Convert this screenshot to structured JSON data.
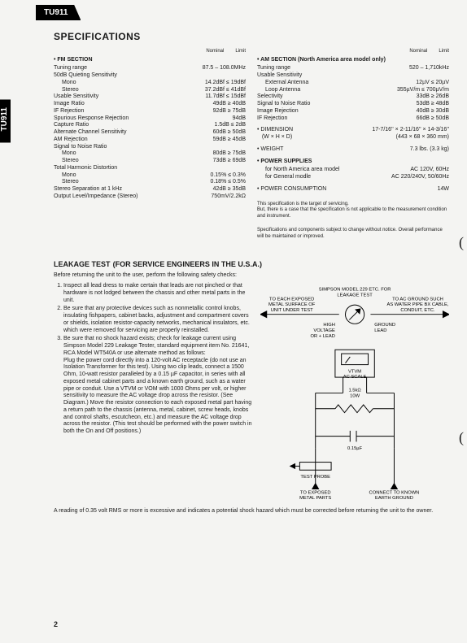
{
  "model": "TU911",
  "page_number": "2",
  "headings": {
    "specs": "SPECIFICATIONS",
    "leak": "LEAKAGE TEST",
    "leak_sub": "(FOR SERVICE ENGINEERS IN THE U.S.A.)"
  },
  "spec_header": {
    "nominal": "Nominal",
    "limit": "Limit"
  },
  "fm": {
    "title": "• FM SECTION",
    "rows": [
      {
        "l": "Tuning range",
        "v": "87.5 – 108.0MHz"
      },
      {
        "l": "50dB Quieting Sensitivity",
        "v": ""
      },
      {
        "l": "Mono",
        "v": "14.2dBf ≤ 19dBf",
        "i": 1
      },
      {
        "l": "Stereo",
        "v": "37.2dBf ≤ 41dBf",
        "i": 1
      },
      {
        "l": "Usable Sensitivity",
        "v": "11.7dBf ≤ 15dBf"
      },
      {
        "l": "Image Ratio",
        "v": "49dB ≥ 40dB"
      },
      {
        "l": "IF Rejection",
        "v": "92dB ≥ 75dB"
      },
      {
        "l": "Spurious Response Rejection",
        "v": "94dB"
      },
      {
        "l": "Capture Ratio",
        "v": "1.5dB ≤ 2dB"
      },
      {
        "l": "Alternate Channel Sensitivity",
        "v": "60dB ≥ 50dB"
      },
      {
        "l": "AM Rejection",
        "v": "59dB ≥ 45dB"
      },
      {
        "l": "Signal to Noise Ratio",
        "v": ""
      },
      {
        "l": "Mono",
        "v": "80dB ≥ 75dB",
        "i": 1
      },
      {
        "l": "Stereo",
        "v": "73dB ≥ 69dB",
        "i": 1
      },
      {
        "l": "Total Harmonic Distortion",
        "v": ""
      },
      {
        "l": "Mono",
        "v": "0.15% ≤ 0.3%",
        "i": 1
      },
      {
        "l": "Stereo",
        "v": "0.18% ≤ 0.5%",
        "i": 1
      },
      {
        "l": "Stereo Separation at 1 kHz",
        "v": "42dB ≥ 35dB"
      },
      {
        "l": "Output Level/Impedance (Stereo)",
        "v": "750mV/2.2kΩ"
      }
    ]
  },
  "am": {
    "title": "• AM SECTION (North America area model only)",
    "rows": [
      {
        "l": "Tuning range",
        "v": "520 – 1,710kHz"
      },
      {
        "l": "Usable Sensitivity",
        "v": ""
      },
      {
        "l": "External Antenna",
        "v": "12µV ≤ 20µV",
        "i": 1
      },
      {
        "l": "Loop Antenna",
        "v": "355µV/m ≤ 700µV/m",
        "i": 1
      },
      {
        "l": "Selectivity",
        "v": "33dB ≥ 26dB"
      },
      {
        "l": "Signal to Noise Ratio",
        "v": "53dB ≥ 48dB"
      },
      {
        "l": "Image Rejection",
        "v": "40dB ≥ 30dB"
      },
      {
        "l": "IF Rejection",
        "v": "66dB ≥ 50dB"
      }
    ],
    "dim_l": "• DIMENSION\n   (W × H × D)",
    "dim_v": "17-7/16'' × 2-11/16'' × 14-3/16''\n(443 × 68 × 360 mm)",
    "wt_l": "• WEIGHT",
    "wt_v": "7.3 lbs. (3.3 kg)",
    "ps_title": "• POWER SUPPLIES",
    "ps1_l": "for North America area model",
    "ps1_v": "AC 120V, 60Hz",
    "ps2_l": "for General modle",
    "ps2_v": "AC 220/240V, 50/60Hz",
    "pc_l": "• POWER CONSUMPTION",
    "pc_v": "14W"
  },
  "notes": {
    "n1": "This specification is the target of servicing.\nBut, there is a case that the specification is not applicable to the measurement condition and instrument.",
    "n2": "Specifications and components subject to change without notice. Overall performance will be maintained or improved."
  },
  "leak": {
    "intro": "Before returning the unit to the user, perform the following safety checks:",
    "li1": "Inspect all lead dress to make certain that leads are not pinched or that hardware is not lodged between the chassis and other metal parts in the unit.",
    "li2": "Be sure that any protective devices such as nonmetallic control knobs, insulating fishpapers, cabinet backs, adjustment and compartment covers or shields, isolation resistor-capacity networks, mechanical insulators, etc. which were removed for servicing are properly reinstalled.",
    "li3": "Be sure that no shock hazard exists; check for leakage current using Simpson Model 229 Leakage Tester, standard equipment item No. 21641, RCA Model WT540A or use alternate method as follows:\nPlug the power cord directly into a 120-volt AC receptacle (do not use an Isolation Transformer for this test). Using two clip leads, connect a 1500 Ohm, 10-watt resistor paralleled by a 0.15 µF capacitor, in series with all exposed metal cabinet parts and a known earth ground, such as a water pipe or conduit. Use a VTVM or VOM with 1000 Ohms per volt, or higher sensitivity to measure the AC voltage drop across the resistor. (See Diagram.) Move the resistor connection to each exposed metal part having a return path to the chassis (antenna, metal, cabinet, screw heads, knobs and control shafts, escutcheon, etc.) and measure the AC voltage drop across the resistor. (This test should be performed with the power switch in both the On and Off positions.)",
    "tail": "A reading of 0.35 volt RMS or more is excessive and indicates a potential shock hazard which must be corrected before returning the unit to the owner.",
    "fig": {
      "top_label": "SIMPSON MODEL 229 ETC. FOR\nLEAKAGE TEST",
      "left_tag": "TO EACH EXPOSED\nMETAL SURFACE OF\nUNIT UNDER TEST",
      "right_tag": "TO AC GROUND SUCH\nAS WATER PIPE BX CABLE,\nCONDUIT, ETC.",
      "hv": "HIGH\nVOLTAGE\nOR + LEAD",
      "gnd": "GROUND\nLEAD",
      "vtvm": "VTVM\nAC SCALE",
      "res": "1.5kΩ\n10W",
      "cap": "0.15µF",
      "probe": "TEST PROBE",
      "bl": "TO EXPOSED\nMETAL PARTS",
      "br": "CONNECT TO KNOWN\nEARTH GROUND"
    }
  },
  "style": {
    "bg": "#f4f4f2",
    "fg": "#1a1a1a"
  }
}
